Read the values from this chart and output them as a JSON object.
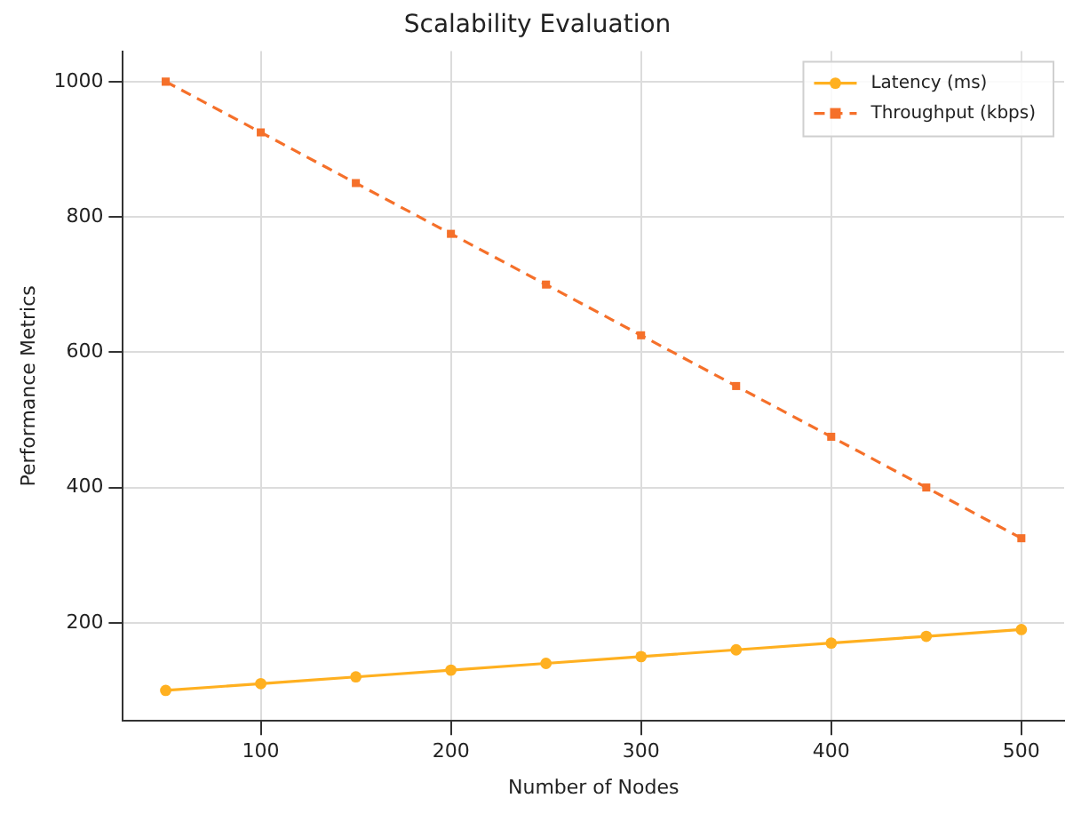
{
  "chart_data": {
    "type": "line",
    "title": "Scalability Evaluation",
    "xlabel": "Number of Nodes",
    "ylabel": "Performance Metrics",
    "x": [
      50,
      100,
      150,
      200,
      250,
      300,
      350,
      400,
      450,
      500
    ],
    "series": [
      {
        "name": "Latency (ms)",
        "color": "#ffb020",
        "marker": "circle",
        "line_style": "solid",
        "values": [
          100,
          110,
          120,
          130,
          140,
          150,
          160,
          170,
          180,
          190
        ]
      },
      {
        "name": "Throughput (kbps)",
        "color": "#f5702a",
        "marker": "square",
        "line_style": "dashed",
        "values": [
          1000,
          925,
          850,
          775,
          700,
          625,
          550,
          475,
          400,
          325
        ]
      }
    ],
    "xlim": [
      27.5,
      522.5
    ],
    "xticks": [
      100,
      200,
      300,
      400,
      500
    ],
    "ylim": [
      55,
      1045
    ],
    "yticks": [
      200,
      400,
      600,
      800,
      1000
    ],
    "grid": true,
    "legend": "top right"
  }
}
